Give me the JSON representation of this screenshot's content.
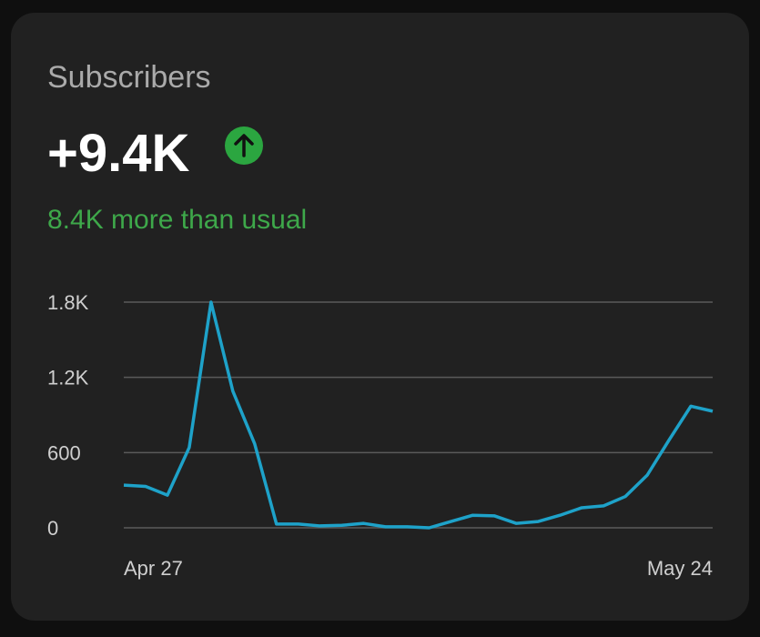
{
  "header": {
    "title": "Subscribers",
    "value": "+9.4K",
    "comparison": "8.4K more than usual"
  },
  "chart_data": {
    "type": "line",
    "categories": [
      "Apr 27",
      null,
      null,
      null,
      null,
      null,
      null,
      null,
      null,
      null,
      null,
      null,
      null,
      null,
      null,
      null,
      null,
      null,
      null,
      null,
      null,
      null,
      null,
      null,
      null,
      null,
      null,
      "May 24"
    ],
    "values": [
      340,
      330,
      260,
      640,
      1800,
      1090,
      670,
      30,
      30,
      15,
      20,
      35,
      8,
      8,
      0,
      50,
      100,
      95,
      35,
      50,
      100,
      160,
      175,
      250,
      420,
      700,
      970,
      930
    ],
    "color": "#1ea2c9",
    "ylim": [
      0,
      1800
    ],
    "yticks": [
      0,
      600,
      {
        "value": 1200,
        "label": "1.2K"
      },
      {
        "value": 1800,
        "label": "1.8K"
      }
    ],
    "grid": true
  }
}
